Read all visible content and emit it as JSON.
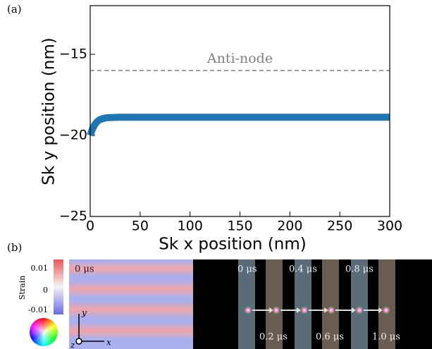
{
  "chart_data": {
    "type": "line",
    "panel_label": "(a)",
    "xlabel": "Sk x position (nm)",
    "ylabel": "Sk y position (nm)",
    "x": [
      0,
      2,
      4,
      6,
      8,
      10,
      13,
      16,
      20,
      30,
      50,
      100,
      150,
      200,
      250,
      300
    ],
    "series": [
      {
        "color": "#1f77b4",
        "values": [
          -20,
          -19.65,
          -19.4,
          -19.22,
          -19.1,
          -19.02,
          -18.96,
          -18.92,
          -18.9,
          -18.88,
          -18.88,
          -18.88,
          -18.88,
          -18.88,
          -18.88,
          -18.88
        ]
      }
    ],
    "xlim": [
      0,
      300
    ],
    "ylim": [
      -25,
      -12
    ],
    "xticks": [
      0,
      50,
      100,
      150,
      200,
      250,
      300
    ],
    "yticks": [
      {
        "value": -25,
        "label": "−25"
      },
      {
        "value": -20,
        "label": "−20"
      },
      {
        "value": -15,
        "label": "−15"
      }
    ],
    "reference_lines": [
      {
        "value": -16,
        "label": "Anti-node",
        "color": "#808080"
      }
    ]
  },
  "panel_b": {
    "panel_label": "(b)",
    "colorbar": {
      "label": "Strain",
      "ticks": [
        "0.01",
        "0",
        "-0.01"
      ]
    },
    "strain_time": "0 μs",
    "axes": [
      "y",
      "x",
      "z"
    ],
    "times_top": [
      "0 μs",
      "0.4 μs",
      "0.8 μs"
    ],
    "times_bottom": [
      "0.2 μs",
      "0.6 μs",
      "1.0 μs"
    ]
  }
}
